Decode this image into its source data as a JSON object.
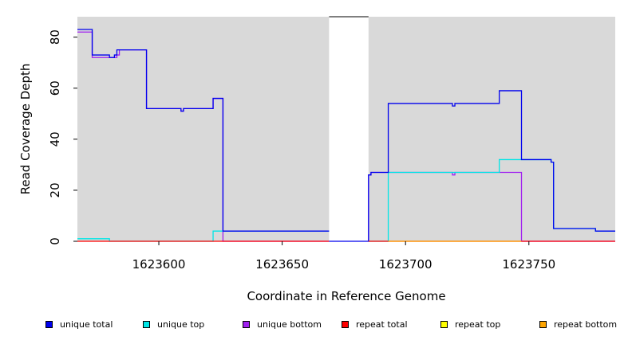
{
  "chart_data": {
    "type": "line",
    "title": "",
    "xlabel": "Coordinate in Reference Genome",
    "ylabel": "Read Coverage Depth",
    "xlim": [
      1623567,
      1623785
    ],
    "ylim": [
      0,
      88
    ],
    "x_ticks": [
      1623600,
      1623650,
      1623700,
      1623750
    ],
    "x_tick_labels": [
      "1623600",
      "1623650",
      "1623700",
      "1623750"
    ],
    "y_ticks": [
      0,
      20,
      40,
      60,
      80
    ],
    "y_tick_labels": [
      "0",
      "20",
      "40",
      "60",
      "80"
    ],
    "grid": false,
    "background": "#d9d9d9",
    "gap": {
      "from": 1623669,
      "to": 1623685
    },
    "legend_position": "bottom",
    "series": [
      {
        "name": "unique bottom",
        "color": "#a020f0",
        "points": [
          [
            1623567,
            82
          ],
          [
            1623573,
            82
          ],
          [
            1623573,
            72
          ],
          [
            1623581,
            72
          ],
          [
            1623581,
            72
          ],
          [
            1623583,
            72
          ],
          [
            1623583,
            73
          ],
          [
            1623584,
            73
          ],
          [
            1623584,
            75
          ],
          [
            1623595,
            75
          ],
          [
            1623595,
            52
          ],
          [
            1623609,
            52
          ],
          [
            1623609,
            51
          ],
          [
            1623610,
            51
          ],
          [
            1623610,
            52
          ],
          [
            1623622,
            52
          ],
          [
            1623622,
            56
          ],
          [
            1623626,
            56
          ],
          [
            1623626,
            0
          ],
          [
            1623669,
            0
          ]
        ]
      },
      {
        "name": "unique bottom",
        "color": "#a020f0",
        "points": [
          [
            1623685,
            0
          ],
          [
            1623685,
            26
          ],
          [
            1623686,
            26
          ],
          [
            1623686,
            27
          ],
          [
            1623719,
            27
          ],
          [
            1623719,
            26
          ],
          [
            1623720,
            26
          ],
          [
            1623720,
            27
          ],
          [
            1623747,
            27
          ],
          [
            1623747,
            0
          ],
          [
            1623785,
            0
          ]
        ]
      },
      {
        "name": "unique top",
        "color": "#00e5e5",
        "points": [
          [
            1623567,
            1
          ],
          [
            1623580,
            1
          ],
          [
            1623580,
            0
          ],
          [
            1623622,
            0
          ],
          [
            1623622,
            4
          ],
          [
            1623626,
            4
          ],
          [
            1623669,
            4
          ]
        ]
      },
      {
        "name": "unique top",
        "color": "#00e5e5",
        "points": [
          [
            1623685,
            0
          ],
          [
            1623693,
            0
          ],
          [
            1623693,
            27
          ],
          [
            1623738,
            27
          ],
          [
            1623738,
            32
          ],
          [
            1623759,
            32
          ],
          [
            1623759,
            31
          ],
          [
            1623760,
            31
          ],
          [
            1623760,
            5
          ],
          [
            1623777,
            5
          ],
          [
            1623777,
            4
          ],
          [
            1623785,
            4
          ]
        ]
      },
      {
        "name": "unique total",
        "color": "#0000ee",
        "points": [
          [
            1623567,
            83
          ],
          [
            1623573,
            83
          ],
          [
            1623573,
            73
          ],
          [
            1623580,
            73
          ],
          [
            1623580,
            72
          ],
          [
            1623582,
            72
          ],
          [
            1623582,
            73
          ],
          [
            1623583,
            73
          ],
          [
            1623583,
            75
          ],
          [
            1623595,
            75
          ],
          [
            1623595,
            52
          ],
          [
            1623609,
            52
          ],
          [
            1623609,
            51
          ],
          [
            1623610,
            51
          ],
          [
            1623610,
            52
          ],
          [
            1623622,
            52
          ],
          [
            1623622,
            56
          ],
          [
            1623626,
            56
          ],
          [
            1623626,
            4
          ],
          [
            1623669,
            4
          ]
        ]
      },
      {
        "name": "unique total",
        "color": "#0000ee",
        "points": [
          [
            1623669,
            0
          ],
          [
            1623685,
            0
          ],
          [
            1623685,
            26
          ],
          [
            1623686,
            26
          ],
          [
            1623686,
            27
          ],
          [
            1623693,
            27
          ],
          [
            1623693,
            54
          ],
          [
            1623719,
            54
          ],
          [
            1623719,
            53
          ],
          [
            1623720,
            53
          ],
          [
            1623720,
            54
          ],
          [
            1623738,
            54
          ],
          [
            1623738,
            59
          ],
          [
            1623747,
            59
          ],
          [
            1623747,
            32
          ],
          [
            1623759,
            32
          ],
          [
            1623759,
            31
          ],
          [
            1623760,
            31
          ],
          [
            1623760,
            5
          ],
          [
            1623777,
            5
          ],
          [
            1623777,
            4
          ],
          [
            1623785,
            4
          ]
        ]
      },
      {
        "name": "repeat total",
        "color": "#ff0000",
        "points": [
          [
            1623567,
            0
          ],
          [
            1623669,
            0
          ]
        ]
      },
      {
        "name": "repeat total",
        "color": "#ff0000",
        "points": [
          [
            1623685,
            0
          ],
          [
            1623785,
            0
          ]
        ]
      },
      {
        "name": "repeat bottom",
        "color": "#ffa500",
        "points": [
          [
            1623693,
            0
          ],
          [
            1623747,
            0
          ]
        ]
      }
    ],
    "legend": [
      {
        "label": "unique total",
        "color": "#0000ee"
      },
      {
        "label": "unique top",
        "color": "#00e5e5"
      },
      {
        "label": "unique bottom",
        "color": "#a020f0"
      },
      {
        "label": "repeat total",
        "color": "#ff0000"
      },
      {
        "label": "repeat top",
        "color": "#ffff00"
      },
      {
        "label": "repeat bottom",
        "color": "#ffa500"
      }
    ]
  }
}
